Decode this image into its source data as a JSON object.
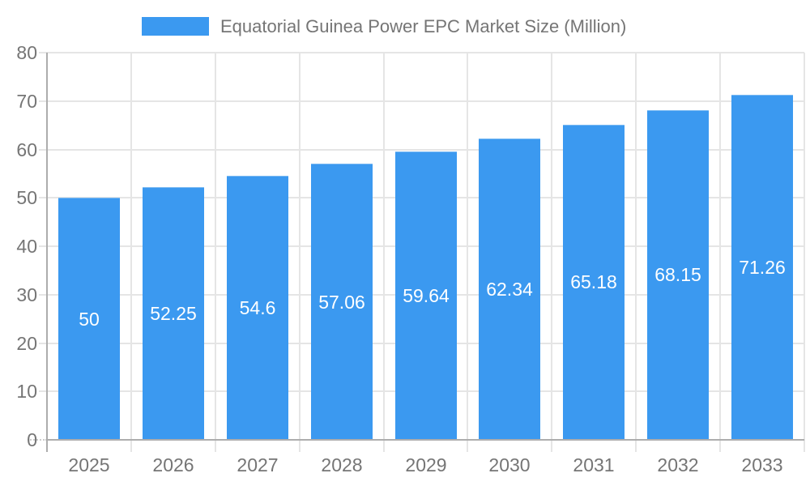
{
  "chart_data": {
    "type": "bar",
    "title": "Equatorial Guinea Power EPC Market Size (Million)",
    "legend_label": "Equatorial Guinea Power EPC Market Size (Million)",
    "legend_position": "top",
    "categories": [
      "2025",
      "2026",
      "2027",
      "2028",
      "2029",
      "2030",
      "2031",
      "2032",
      "2033"
    ],
    "values": [
      50,
      52.25,
      54.6,
      57.06,
      59.64,
      62.34,
      65.18,
      68.15,
      71.26
    ],
    "bar_labels": [
      "50",
      "52.25",
      "54.6",
      "57.06",
      "59.64",
      "62.34",
      "65.18",
      "68.15",
      "71.26"
    ],
    "xlabel": "",
    "ylabel": "",
    "ylim": [
      0,
      80
    ],
    "ytick_step": 10,
    "yticks": [
      "0",
      "10",
      "20",
      "30",
      "40",
      "50",
      "60",
      "70",
      "80"
    ],
    "grid": true,
    "colors": {
      "bar": "#3B99F0",
      "bar_edge": "#7AB9F2",
      "bar_label_text": "#FFFFFF",
      "text": "#757575",
      "axis_line": "#ADADAD",
      "grid_line": "#E5E5E5",
      "zero_tick_dotted": "#CCCCCC",
      "background": "#FFFFFF"
    }
  }
}
